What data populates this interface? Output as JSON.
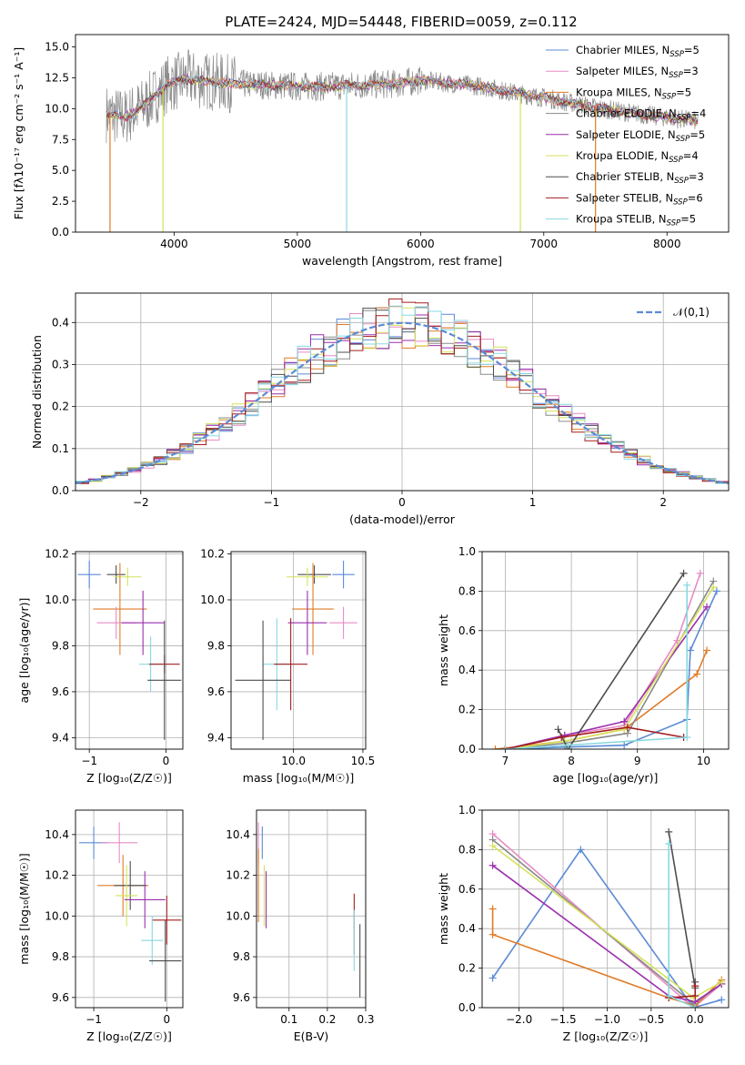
{
  "figure_title": "PLATE=2424, MJD=54448, FIBERID=0059, z=0.112",
  "palette": [
    "#5b8bd6",
    "#e88bc4",
    "#e07b26",
    "#8a8a8a",
    "#9b2fae",
    "#d6e25a",
    "#4d4d4d",
    "#a31d1d",
    "#88d8e0"
  ],
  "chart_data": [
    {
      "id": "spectrum",
      "type": "line",
      "title": "PLATE=2424, MJD=54448, FIBERID=0059, z=0.112",
      "xlabel": "wavelength [Angstrom, rest frame]",
      "ylabel": "Flux [fλ10⁻¹⁷ erg cm⁻² s⁻¹ A⁻¹]",
      "xlim": [
        3200,
        8500
      ],
      "ylim": [
        0,
        16
      ],
      "xticks": [
        4000,
        5000,
        6000,
        7000,
        8000
      ],
      "yticks": [
        0.0,
        2.5,
        5.0,
        7.5,
        10.0,
        12.5,
        15.0
      ],
      "legend_position": "top-right",
      "legend": [
        {
          "main": "Chabrier MILES, N",
          "sub": "SSP",
          "tail": "=5"
        },
        {
          "main": "Salpeter MILES, N",
          "sub": "SSP",
          "tail": "=3"
        },
        {
          "main": "Kroupa MILES, N",
          "sub": "SSP",
          "tail": "=5"
        },
        {
          "main": "Chabrier ELODIE, N",
          "sub": "SSP",
          "tail": "=4"
        },
        {
          "main": "Salpeter ELODIE, N",
          "sub": "SSP",
          "tail": "=5"
        },
        {
          "main": "Kroupa ELODIE, N",
          "sub": "SSP",
          "tail": "=4"
        },
        {
          "main": "Chabrier STELIB, N",
          "sub": "SSP",
          "tail": "=3"
        },
        {
          "main": "Salpeter STELIB, N",
          "sub": "SSP",
          "tail": "=6"
        },
        {
          "main": "Kroupa STELIB, N",
          "sub": "SSP",
          "tail": "=5"
        }
      ],
      "continuum": {
        "x": [
          3450,
          3600,
          3750,
          3950,
          4100,
          4300,
          4500,
          4800,
          5000,
          5200,
          5500,
          5800,
          6000,
          6200,
          6500,
          6800,
          7000,
          7300,
          7600,
          7900,
          8250
        ],
        "y": [
          9.6,
          9.3,
          10.2,
          12.0,
          12.4,
          12.2,
          12.0,
          11.9,
          11.8,
          11.8,
          11.9,
          12.0,
          12.3,
          12.1,
          11.8,
          11.2,
          10.9,
          10.3,
          9.8,
          9.4,
          9.0
        ]
      },
      "dips": [
        {
          "series": 2,
          "x": 3480,
          "y": 0.0
        },
        {
          "series": 5,
          "x": 3910,
          "y": 0.0
        },
        {
          "series": 8,
          "x": 5400,
          "y": 0.0
        },
        {
          "series": 5,
          "x": 6810,
          "y": 0.0
        },
        {
          "series": 2,
          "x": 7420,
          "y": 0.0
        }
      ]
    },
    {
      "id": "residuals",
      "type": "histogram",
      "xlabel": "(data-model)/error",
      "ylabel": "Normed distribution",
      "xlim": [
        -2.5,
        2.5
      ],
      "ylim": [
        0,
        0.47
      ],
      "xticks": [
        -2,
        -1,
        0,
        1,
        2
      ],
      "yticks": [
        0.0,
        0.1,
        0.2,
        0.3,
        0.4
      ],
      "bin_edges_start": -2.5,
      "bin_width": 0.1,
      "legend": "𝒩(0,1)",
      "legend_position": "top-right",
      "gaussian": {
        "mean": 0,
        "sigma": 1
      }
    },
    {
      "id": "z-age",
      "type": "errorbar",
      "xlabel": "Z [log₁₀(Z/Z☉)]",
      "ylabel": "age  [log₁₀(age/yr)]",
      "xlim": [
        -1.18,
        0.22
      ],
      "ylim": [
        9.35,
        10.21
      ],
      "xticks": [
        -1,
        0
      ],
      "yticks": [
        9.4,
        9.6,
        9.8,
        10.0,
        10.2
      ],
      "points": [
        {
          "s": 0,
          "x": -1.0,
          "xerr": 0.15,
          "y": 10.11,
          "yerr": 0.06
        },
        {
          "s": 6,
          "x": -0.65,
          "xerr": 0.12,
          "y": 10.11,
          "yerr": 0.04
        },
        {
          "s": 5,
          "x": -0.5,
          "xerr": 0.18,
          "y": 10.1,
          "yerr": 0.04
        },
        {
          "s": 2,
          "x": -0.6,
          "xerr": 0.35,
          "y": 9.96,
          "yerr": 0.2
        },
        {
          "s": 1,
          "x": -0.65,
          "xerr": 0.25,
          "y": 9.9,
          "yerr": 0.07
        },
        {
          "s": 4,
          "x": -0.3,
          "xerr": 0.28,
          "y": 9.9,
          "yerr": 0.14
        },
        {
          "s": 8,
          "x": -0.2,
          "xerr": 0.15,
          "y": 9.72,
          "yerr": 0.12
        },
        {
          "s": 7,
          "x": -0.02,
          "xerr": 0.2,
          "y": 9.72,
          "yerr": 0.04
        },
        {
          "s": 6,
          "x": -0.02,
          "xerr": 0.22,
          "y": 9.65,
          "yerr": 0.26
        }
      ]
    },
    {
      "id": "mass-age",
      "type": "errorbar",
      "xlabel": "mass [log₁₀(M/M☉)]",
      "ylabel": "",
      "xlim": [
        9.55,
        10.52
      ],
      "ylim": [
        9.35,
        10.21
      ],
      "xticks": [
        10.0,
        10.5
      ],
      "yticks": [
        9.4,
        9.6,
        9.8,
        10.0,
        10.2
      ],
      "points": [
        {
          "s": 0,
          "x": 10.36,
          "xerr": 0.08,
          "y": 10.11,
          "yerr": 0.06
        },
        {
          "s": 6,
          "x": 10.15,
          "xerr": 0.12,
          "y": 10.11,
          "yerr": 0.04
        },
        {
          "s": 5,
          "x": 10.1,
          "xerr": 0.15,
          "y": 10.1,
          "yerr": 0.04
        },
        {
          "s": 2,
          "x": 10.14,
          "xerr": 0.15,
          "y": 9.96,
          "yerr": 0.2
        },
        {
          "s": 1,
          "x": 10.36,
          "xerr": 0.1,
          "y": 9.9,
          "yerr": 0.07
        },
        {
          "s": 4,
          "x": 10.1,
          "xerr": 0.14,
          "y": 9.9,
          "yerr": 0.14
        },
        {
          "s": 8,
          "x": 9.88,
          "xerr": 0.1,
          "y": 9.72,
          "yerr": 0.2
        },
        {
          "s": 7,
          "x": 9.98,
          "xerr": 0.12,
          "y": 9.72,
          "yerr": 0.2
        },
        {
          "s": 6,
          "x": 9.78,
          "xerr": 0.2,
          "y": 9.65,
          "yerr": 0.26
        }
      ]
    },
    {
      "id": "age-weight",
      "type": "line",
      "xlabel": "age  [log₁₀(age/yr)]",
      "ylabel": "mass weight",
      "xlim": [
        6.65,
        10.38
      ],
      "ylim": [
        0,
        1.0
      ],
      "xticks": [
        7,
        8,
        9,
        10
      ],
      "yticks": [
        0.0,
        0.2,
        0.4,
        0.6,
        0.8,
        1.0
      ],
      "series": [
        {
          "s": 0,
          "x": [
            7.0,
            7.9,
            8.8,
            9.75,
            9.8,
            10.2
          ],
          "y": [
            0.0,
            0.01,
            0.02,
            0.15,
            0.5,
            0.8
          ]
        },
        {
          "s": 1,
          "x": [
            7.0,
            7.9,
            8.8,
            9.6,
            9.95
          ],
          "y": [
            0.0,
            0.07,
            0.12,
            0.55,
            0.89
          ]
        },
        {
          "s": 2,
          "x": [
            6.85,
            7.9,
            8.8,
            9.9,
            10.05
          ],
          "y": [
            0.0,
            0.04,
            0.1,
            0.38,
            0.5
          ]
        },
        {
          "s": 3,
          "x": [
            7.0,
            7.9,
            8.85,
            10.15
          ],
          "y": [
            0.0,
            0.03,
            0.08,
            0.85
          ]
        },
        {
          "s": 4,
          "x": [
            7.0,
            7.9,
            8.8,
            10.05
          ],
          "y": [
            0.0,
            0.07,
            0.14,
            0.72
          ]
        },
        {
          "s": 5,
          "x": [
            7.0,
            7.9,
            8.8,
            10.15
          ],
          "y": [
            0.0,
            0.04,
            0.1,
            0.82
          ]
        },
        {
          "s": 6,
          "x": [
            7.8,
            7.95,
            9.7
          ],
          "y": [
            0.1,
            0.0,
            0.89
          ]
        },
        {
          "s": 7,
          "x": [
            7.0,
            7.85,
            8.85,
            9.7
          ],
          "y": [
            0.0,
            0.06,
            0.11,
            0.06
          ]
        },
        {
          "s": 8,
          "x": [
            7.0,
            7.95,
            9.75,
            9.75
          ],
          "y": [
            0.0,
            0.02,
            0.06,
            0.83
          ]
        }
      ]
    },
    {
      "id": "z-mass",
      "type": "errorbar",
      "xlabel": "Z [log₁₀(Z/Z☉)]",
      "ylabel": "mass [log₁₀(M/M☉)]",
      "xlim": [
        -1.25,
        0.22
      ],
      "ylim": [
        9.55,
        10.52
      ],
      "xticks": [
        -1,
        0
      ],
      "yticks": [
        9.6,
        9.8,
        10.0,
        10.2,
        10.4
      ],
      "points": [
        {
          "s": 0,
          "x": -1.0,
          "xerr": 0.2,
          "y": 10.36,
          "yerr": 0.08
        },
        {
          "s": 1,
          "x": -0.65,
          "xerr": 0.25,
          "y": 10.36,
          "yerr": 0.1
        },
        {
          "s": 2,
          "x": -0.6,
          "xerr": 0.35,
          "y": 10.15,
          "yerr": 0.15
        },
        {
          "s": 6,
          "x": -0.5,
          "xerr": 0.22,
          "y": 10.15,
          "yerr": 0.12
        },
        {
          "s": 5,
          "x": -0.55,
          "xerr": 0.15,
          "y": 10.1,
          "yerr": 0.15
        },
        {
          "s": 4,
          "x": -0.3,
          "xerr": 0.28,
          "y": 10.08,
          "yerr": 0.14
        },
        {
          "s": 7,
          "x": 0.0,
          "xerr": 0.2,
          "y": 9.98,
          "yerr": 0.12
        },
        {
          "s": 8,
          "x": -0.2,
          "xerr": 0.15,
          "y": 9.88,
          "yerr": 0.12
        },
        {
          "s": 6,
          "x": -0.02,
          "xerr": 0.22,
          "y": 9.78,
          "yerr": 0.2
        }
      ]
    },
    {
      "id": "ebv-mass",
      "type": "errorbar",
      "xlabel": "E(B-V)",
      "ylabel": "",
      "xlim": [
        0.015,
        0.3
      ],
      "ylim": [
        9.55,
        10.52
      ],
      "xticks": [
        0.1,
        0.2,
        0.3
      ],
      "yticks": [
        9.6,
        9.8,
        10.0,
        10.2,
        10.4
      ],
      "points": [
        {
          "s": 1,
          "x": 0.02,
          "xerr": 0.0,
          "y": 10.36,
          "yerr": 0.1
        },
        {
          "s": 0,
          "x": 0.03,
          "xerr": 0.0,
          "y": 10.36,
          "yerr": 0.08
        },
        {
          "s": 2,
          "x": 0.02,
          "xerr": 0.0,
          "y": 10.15,
          "yerr": 0.18
        },
        {
          "s": 5,
          "x": 0.035,
          "xerr": 0.0,
          "y": 10.1,
          "yerr": 0.15
        },
        {
          "s": 4,
          "x": 0.04,
          "xerr": 0.0,
          "y": 10.08,
          "yerr": 0.14
        },
        {
          "s": 7,
          "x": 0.27,
          "xerr": 0.0,
          "y": 9.96,
          "yerr": 0.15
        },
        {
          "s": 8,
          "x": 0.27,
          "xerr": 0.0,
          "y": 9.88,
          "yerr": 0.15
        },
        {
          "s": 6,
          "x": 0.285,
          "xerr": 0.0,
          "y": 9.78,
          "yerr": 0.18
        }
      ]
    },
    {
      "id": "z-weight",
      "type": "line",
      "xlabel": "Z [log₁₀(Z/Z☉)]",
      "ylabel": "mass weight",
      "xlim": [
        -2.42,
        0.38
      ],
      "ylim": [
        0,
        1.0
      ],
      "xticks": [
        -2.0,
        -1.5,
        -1.0,
        -0.5,
        0.0
      ],
      "yticks": [
        0.0,
        0.2,
        0.4,
        0.6,
        0.8,
        1.0
      ],
      "series": [
        {
          "s": 0,
          "x": [
            -2.3,
            -1.3,
            -0.02,
            0.3
          ],
          "y": [
            0.15,
            0.8,
            0.0,
            0.04
          ]
        },
        {
          "s": 1,
          "x": [
            -2.3,
            -0.02,
            0.3
          ],
          "y": [
            0.88,
            0.0,
            0.12
          ]
        },
        {
          "s": 2,
          "x": [
            -2.3,
            -2.3,
            -0.3,
            0.0,
            0.3
          ],
          "y": [
            0.5,
            0.37,
            0.05,
            0.01,
            0.14
          ]
        },
        {
          "s": 3,
          "x": [
            -2.3,
            -0.02,
            0.3
          ],
          "y": [
            0.85,
            0.02,
            0.12
          ]
        },
        {
          "s": 4,
          "x": [
            -2.3,
            -0.3,
            0.0,
            0.3
          ],
          "y": [
            0.72,
            0.06,
            0.03,
            0.12
          ]
        },
        {
          "s": 5,
          "x": [
            -2.3,
            -0.02,
            0.3
          ],
          "y": [
            0.82,
            0.05,
            0.13
          ]
        },
        {
          "s": 6,
          "x": [
            -0.3,
            0.0,
            0.0
          ],
          "y": [
            0.89,
            0.1,
            0.13
          ]
        },
        {
          "s": 7,
          "x": [
            -0.3,
            0.0,
            0.0
          ],
          "y": [
            0.05,
            0.06,
            0.11
          ]
        },
        {
          "s": 8,
          "x": [
            -0.3,
            -0.3,
            0.0
          ],
          "y": [
            0.83,
            0.06,
            0.0
          ]
        }
      ]
    }
  ]
}
